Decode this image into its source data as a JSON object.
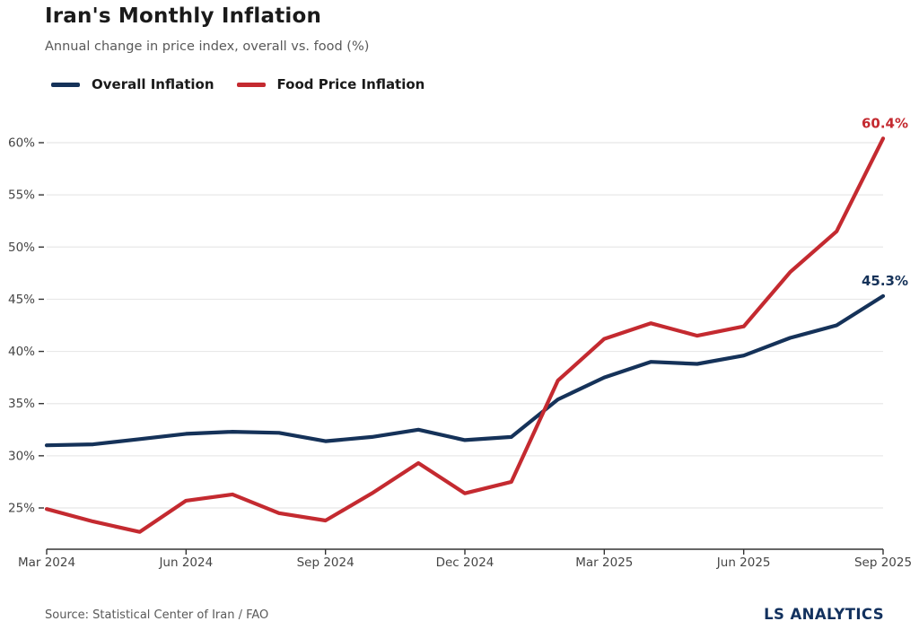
{
  "chart_data": {
    "type": "line",
    "title": "Iran's Monthly Inflation",
    "subtitle": "Annual change in price index, overall vs. food (%)",
    "x": [
      "Mar 2024",
      "Apr 2024",
      "May 2024",
      "Jun 2024",
      "Jul 2024",
      "Aug 2024",
      "Sep 2024",
      "Oct 2024",
      "Nov 2024",
      "Dec 2024",
      "Jan 2025",
      "Feb 2025",
      "Mar 2025",
      "Apr 2025",
      "May 2025",
      "Jun 2025",
      "Jul 2025",
      "Aug 2025",
      "Sep 2025"
    ],
    "xtick_labels": [
      "Mar 2024",
      "Jun 2024",
      "Sep 2024",
      "Dec 2024",
      "Mar 2025",
      "Jun 2025",
      "Sep 2025"
    ],
    "xtick_indices": [
      0,
      3,
      6,
      9,
      12,
      15,
      18
    ],
    "yticks": [
      25,
      30,
      35,
      40,
      45,
      50,
      55,
      60
    ],
    "ytick_suffix": "%",
    "ylim": [
      21,
      62
    ],
    "grid": "horizontal",
    "legend_position": "top-left",
    "series": [
      {
        "name": "Overall Inflation",
        "color": "#153259",
        "end_label": "45.3%",
        "values": [
          31.0,
          31.1,
          31.6,
          32.1,
          32.3,
          32.2,
          31.4,
          31.8,
          32.5,
          31.5,
          31.8,
          35.4,
          37.5,
          39.0,
          38.8,
          39.6,
          41.3,
          42.5,
          45.3
        ]
      },
      {
        "name": "Food Price Inflation",
        "color": "#c42a30",
        "end_label": "60.4%",
        "values": [
          24.9,
          23.7,
          22.7,
          25.7,
          26.3,
          24.5,
          23.8,
          26.4,
          29.3,
          26.4,
          27.5,
          37.2,
          41.2,
          42.7,
          41.5,
          42.4,
          47.6,
          51.5,
          60.4
        ]
      }
    ]
  },
  "footer": {
    "source": "Source: Statistical Center of Iran / FAO",
    "brand": "LS ANALYTICS",
    "brand_color": "#12315e"
  }
}
